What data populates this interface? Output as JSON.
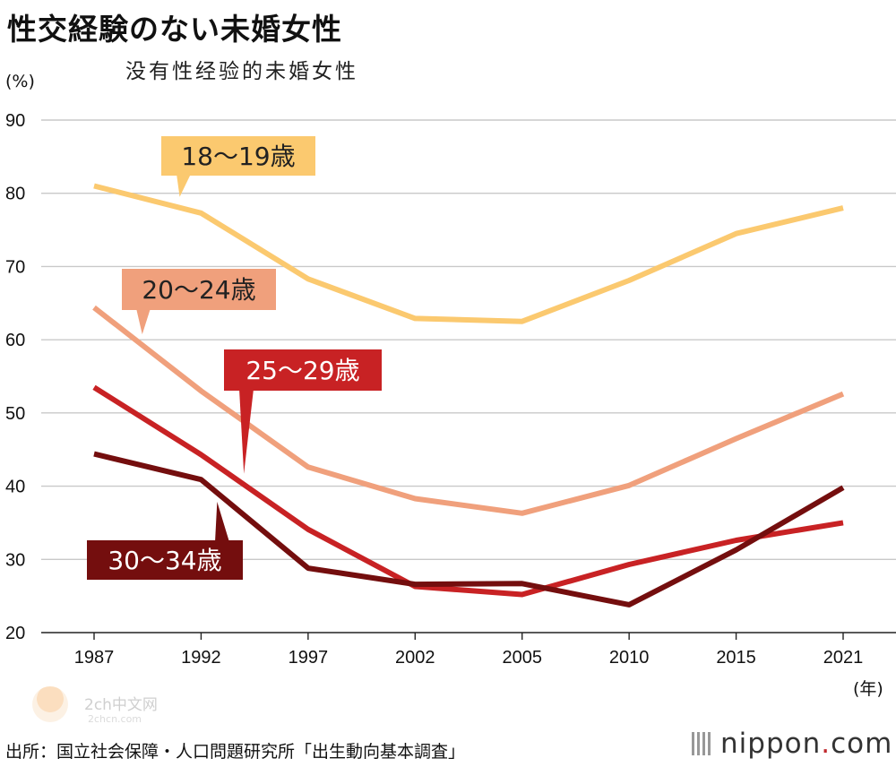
{
  "title": "性交経験のない未婚女性",
  "subtitle": "没有性经验的未婚女性",
  "unit_label": "(%)",
  "x_unit_label": "(年)",
  "source": "出所：国立社会保障・人口問題研究所「出生動向基本調査」",
  "brand": {
    "name": "nippon",
    "dot": ".",
    "tld": "com"
  },
  "watermark": {
    "line1": "2ch中文网",
    "line2": "2chcn.com"
  },
  "chart_data": {
    "type": "line",
    "title": "性交経験のない未婚女性",
    "x": [
      "1987",
      "1992",
      "1997",
      "2002",
      "2005",
      "2010",
      "2015",
      "2021"
    ],
    "xlabel": "(年)",
    "ylabel": "(%)",
    "ylim": [
      20,
      90
    ],
    "yticks": [
      20,
      30,
      40,
      50,
      60,
      70,
      80,
      90
    ],
    "grid": true,
    "legend": "callout labels on lines",
    "series": [
      {
        "name": "18〜19歳",
        "color": "#fbc96f",
        "label_text_color": "#222222",
        "values": [
          81.0,
          77.3,
          68.3,
          62.9,
          62.5,
          68.1,
          74.5,
          78.0
        ]
      },
      {
        "name": "20〜24歳",
        "color": "#f0a07c",
        "label_text_color": "#222222",
        "values": [
          64.4,
          53.0,
          42.6,
          38.3,
          36.3,
          40.1,
          46.5,
          52.6
        ]
      },
      {
        "name": "25〜29歳",
        "color": "#c82224",
        "label_text_color": "#ffffff",
        "values": [
          53.5,
          44.3,
          34.1,
          26.3,
          25.2,
          29.3,
          32.6,
          35.0
        ]
      },
      {
        "name": "30〜34歳",
        "color": "#740e0e",
        "label_text_color": "#ffffff",
        "values": [
          44.4,
          40.9,
          28.8,
          26.6,
          26.7,
          23.8,
          31.3,
          39.8
        ]
      }
    ]
  }
}
